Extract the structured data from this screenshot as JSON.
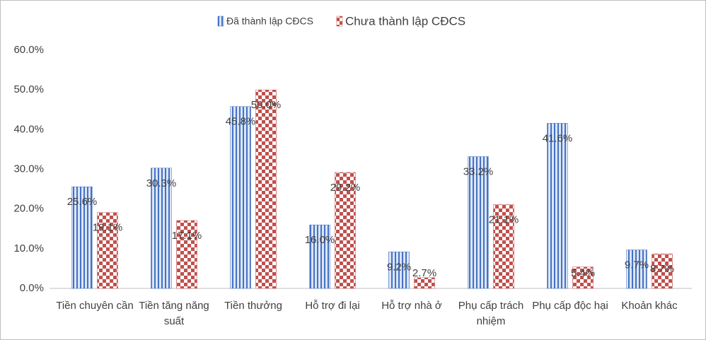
{
  "chart_data": {
    "type": "bar",
    "categories": [
      "Tiền chuyên cần",
      "Tiền tăng năng suất",
      "Tiền thưởng",
      "Hỗ trợ đi lại",
      "Hỗ trợ nhà ở",
      "Phụ cấp trách nhiệm",
      "Phụ cấp độc hại",
      "Khoản khác"
    ],
    "series": [
      {
        "name": "Đã thành lập CĐCS",
        "color": "#4472c4",
        "values": [
          25.6,
          30.3,
          45.8,
          16.0,
          9.2,
          33.2,
          41.6,
          9.7
        ],
        "value_labels": [
          "25.6%",
          "30.3%",
          "45.8%",
          "16.0%",
          "9.2%",
          "33.2%",
          "41.6%",
          "9.7%"
        ]
      },
      {
        "name": "Chưa thành lập CĐCS",
        "color": "#c0504d",
        "values": [
          19.1,
          17.1,
          50.0,
          29.2,
          2.7,
          21.1,
          5.4,
          8.7
        ],
        "value_labels": [
          "19.1%",
          "17.1%",
          "50.0%",
          "29.2%",
          "2.7%",
          "21.1%",
          "5.4%",
          "8.7%"
        ]
      }
    ],
    "ylim": [
      0,
      60
    ],
    "yticks": [
      {
        "value": 0,
        "label": "0.0%"
      },
      {
        "value": 10,
        "label": "10.0%"
      },
      {
        "value": 20,
        "label": "20.0%"
      },
      {
        "value": 30,
        "label": "30.0%"
      },
      {
        "value": 40,
        "label": "40.0%"
      },
      {
        "value": 50,
        "label": "50.0%"
      },
      {
        "value": 60,
        "label": "60.0%"
      }
    ],
    "grid": false,
    "legend": "top"
  }
}
